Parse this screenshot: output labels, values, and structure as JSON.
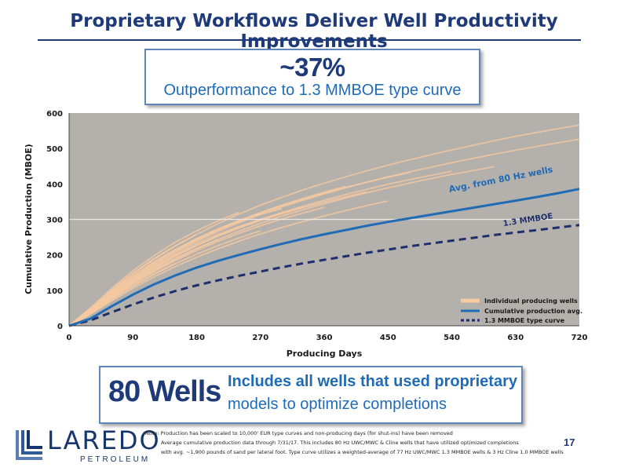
{
  "slide": {
    "title": "Proprietary Workflows Deliver Well Productivity Improvements",
    "page_number": "17"
  },
  "callout": {
    "headline": "~37%",
    "subtext": "Outperformance to 1.3 MMBOE type curve"
  },
  "wells_box": {
    "count": "80 Wells",
    "line1": "Includes all wells that used proprietary",
    "line2": "models to optimize completions"
  },
  "logo": {
    "name": "LAREDO",
    "sub": "PETROLEUM"
  },
  "notes": {
    "line1": "Note: Production has been scaled to 10,000' EUR type curves and non-producing days (for shut-ins) have been removed",
    "line2": "Average cumulative production data through 7/31/17. This includes 80 Hz UWC/MWC & Cline wells that have utilized optimized completions",
    "line3": "with avg. ~1,900 pounds of sand per lateral foot. Type curve utilizes a weighted-average of 77 Hz UWC/MWC 1.3 MMBOE wells & 3 Hz Cline 1.0 MMBOE wells"
  },
  "colors": {
    "plot_bg": "#b4b0ac",
    "individual": "#f6c9a0",
    "average": "#1f6bb5",
    "type_curve": "#1e2f6b",
    "title": "#1f3a78"
  },
  "chart_data": {
    "type": "line",
    "xlabel": "Producing Days",
    "ylabel": "Cumulative Production (MBOE)",
    "xlim": [
      0,
      720
    ],
    "ylim": [
      0,
      600
    ],
    "xticks": [
      0,
      90,
      180,
      270,
      360,
      450,
      540,
      630,
      720
    ],
    "yticks": [
      0,
      100,
      200,
      300,
      400,
      500,
      600
    ],
    "grid": false,
    "legend_position": "bottom-right",
    "series": [
      {
        "name": "Individual producing wells",
        "style": "thin-light",
        "lines": [
          {
            "x": [
              0,
              30,
              60,
              90,
              120,
              150,
              180,
              210,
              240,
              270,
              300
            ],
            "y": [
              0,
              45,
              95,
              140,
              180,
              215,
              245,
              272,
              295,
              315,
              330
            ]
          },
          {
            "x": [
              0,
              30,
              60,
              90,
              120,
              150,
              180,
              210,
              240,
              270,
              300,
              330
            ],
            "y": [
              0,
              40,
              88,
              130,
              168,
              202,
              232,
              258,
              280,
              300,
              318,
              334
            ]
          },
          {
            "x": [
              0,
              30,
              60,
              90,
              120,
              150,
              180,
              210,
              240
            ],
            "y": [
              0,
              50,
              105,
              155,
              198,
              236,
              268,
              296,
              320
            ]
          },
          {
            "x": [
              0,
              30,
              60,
              90,
              120,
              150,
              180,
              210,
              240,
              270
            ],
            "y": [
              0,
              35,
              75,
              112,
              145,
              175,
              202,
              226,
              248,
              268
            ]
          },
          {
            "x": [
              0,
              30,
              60,
              90,
              120,
              150,
              180,
              210
            ],
            "y": [
              0,
              38,
              82,
              122,
              158,
              190,
              218,
              244
            ]
          },
          {
            "x": [
              0,
              30,
              60,
              90,
              120,
              150,
              180,
              210,
              240,
              270,
              300,
              330,
              360
            ],
            "y": [
              0,
              36,
              78,
              118,
              152,
              184,
              212,
              238,
              261,
              282,
              301,
              318,
              334
            ]
          },
          {
            "x": [
              0,
              30,
              60,
              90,
              120,
              150,
              180,
              210,
              240,
              270,
              300,
              330,
              360,
              390
            ],
            "y": [
              0,
              42,
              90,
              135,
              175,
              210,
              242,
              270,
              296,
              319,
              340,
              359,
              377,
              393
            ]
          },
          {
            "x": [
              0,
              30,
              60,
              90,
              120,
              150,
              180,
              210,
              240,
              270,
              300,
              330,
              360,
              390,
              420,
              450,
              480,
              510,
              540,
              570,
              600,
              630,
              660,
              690,
              720
            ],
            "y": [
              0,
              40,
              88,
              132,
              172,
              207,
              238,
              266,
              291,
              314,
              335,
              354,
              372,
              389,
              405,
              420,
              434,
              447,
              460,
              472,
              484,
              495,
              506,
              516,
              526
            ]
          },
          {
            "x": [
              0,
              30,
              60,
              90,
              120,
              150,
              180,
              210,
              240,
              270,
              300,
              330,
              360,
              390,
              420,
              450,
              480,
              510,
              540,
              570,
              600,
              630,
              660,
              690,
              720
            ],
            "y": [
              0,
              45,
              98,
              146,
              188,
              225,
              258,
              288,
              315,
              340,
              362,
              383,
              402,
              420,
              437,
              453,
              468,
              482,
              496,
              509,
              522,
              534,
              545,
              556,
              566
            ]
          },
          {
            "x": [
              0,
              30,
              60,
              90,
              120,
              150,
              180,
              210,
              240,
              270,
              300,
              330,
              360,
              390,
              420,
              450,
              480,
              510,
              540
            ],
            "y": [
              0,
              38,
              82,
              124,
              162,
              196,
              226,
              253,
              277,
              299,
              319,
              337,
              354,
              370,
              385,
              399,
              412,
              424,
              436
            ]
          },
          {
            "x": [
              0,
              30,
              60,
              90,
              120,
              150,
              180,
              210,
              240,
              270,
              300,
              330,
              360,
              390,
              420,
              450
            ],
            "y": [
              0,
              32,
              70,
              106,
              138,
              167,
              193,
              217,
              239,
              259,
              277,
              294,
              310,
              325,
              339,
              352
            ]
          },
          {
            "x": [
              0,
              30,
              60,
              90,
              120,
              150,
              180,
              210,
              240,
              270,
              300,
              330,
              360,
              390,
              420,
              450,
              480
            ],
            "y": [
              0,
              44,
              94,
              140,
              180,
              215,
              246,
              273,
              297,
              319,
              339,
              357,
              374,
              390,
              405,
              419,
              432
            ]
          },
          {
            "x": [
              0,
              30,
              60,
              90,
              120,
              150,
              180,
              210,
              240,
              270,
              300,
              330,
              360,
              390,
              420,
              450,
              480,
              510,
              540,
              570,
              600
            ],
            "y": [
              0,
              37,
              80,
              120,
              156,
              188,
              217,
              243,
              267,
              289,
              309,
              327,
              344,
              360,
              375,
              389,
              402,
              415,
              427,
              438,
              449
            ]
          },
          {
            "x": [
              0,
              30,
              60,
              90,
              120,
              150,
              180
            ],
            "y": [
              0,
              48,
              100,
              148,
              190,
              226,
              258
            ]
          },
          {
            "x": [
              0,
              30,
              60,
              90,
              120,
              150
            ],
            "y": [
              0,
              34,
              74,
              112,
              146,
              176
            ]
          },
          {
            "x": [
              0,
              30,
              60,
              90,
              120,
              150,
              180,
              210,
              240,
              270,
              300,
              330,
              360,
              390,
              420
            ],
            "y": [
              0,
              41,
              86,
              128,
              165,
              198,
              227,
              253,
              276,
              297,
              316,
              333,
              349,
              364,
              378
            ]
          }
        ]
      },
      {
        "name": "Cumulative production avg.",
        "style": "solid-thick",
        "x": [
          0,
          30,
          60,
          90,
          120,
          150,
          180,
          210,
          240,
          270,
          300,
          330,
          360,
          390,
          420,
          450,
          480,
          510,
          540,
          570,
          600,
          630,
          660,
          690,
          720
        ],
        "y": [
          0,
          20,
          55,
          88,
          117,
          142,
          164,
          183,
          200,
          216,
          231,
          245,
          258,
          270,
          282,
          293,
          303,
          313,
          323,
          333,
          343,
          353,
          363,
          374,
          386
        ]
      },
      {
        "name": "1.3 MMBOE type curve",
        "style": "dashed-thick",
        "x": [
          0,
          30,
          60,
          90,
          120,
          150,
          180,
          210,
          240,
          270,
          300,
          330,
          360,
          390,
          420,
          450,
          480,
          510,
          540,
          570,
          600,
          630,
          660,
          690,
          720
        ],
        "y": [
          0,
          15,
          38,
          60,
          80,
          98,
          114,
          128,
          141,
          153,
          165,
          176,
          186,
          196,
          206,
          215,
          224,
          232,
          240,
          248,
          256,
          263,
          270,
          277,
          284
        ]
      }
    ],
    "annotations": [
      {
        "text": "Avg. from 80 Hz wells",
        "x": 610,
        "y": 405
      },
      {
        "text": "1.3 MMBOE",
        "x": 648,
        "y": 292
      }
    ],
    "reference_line": {
      "y": 300
    }
  }
}
